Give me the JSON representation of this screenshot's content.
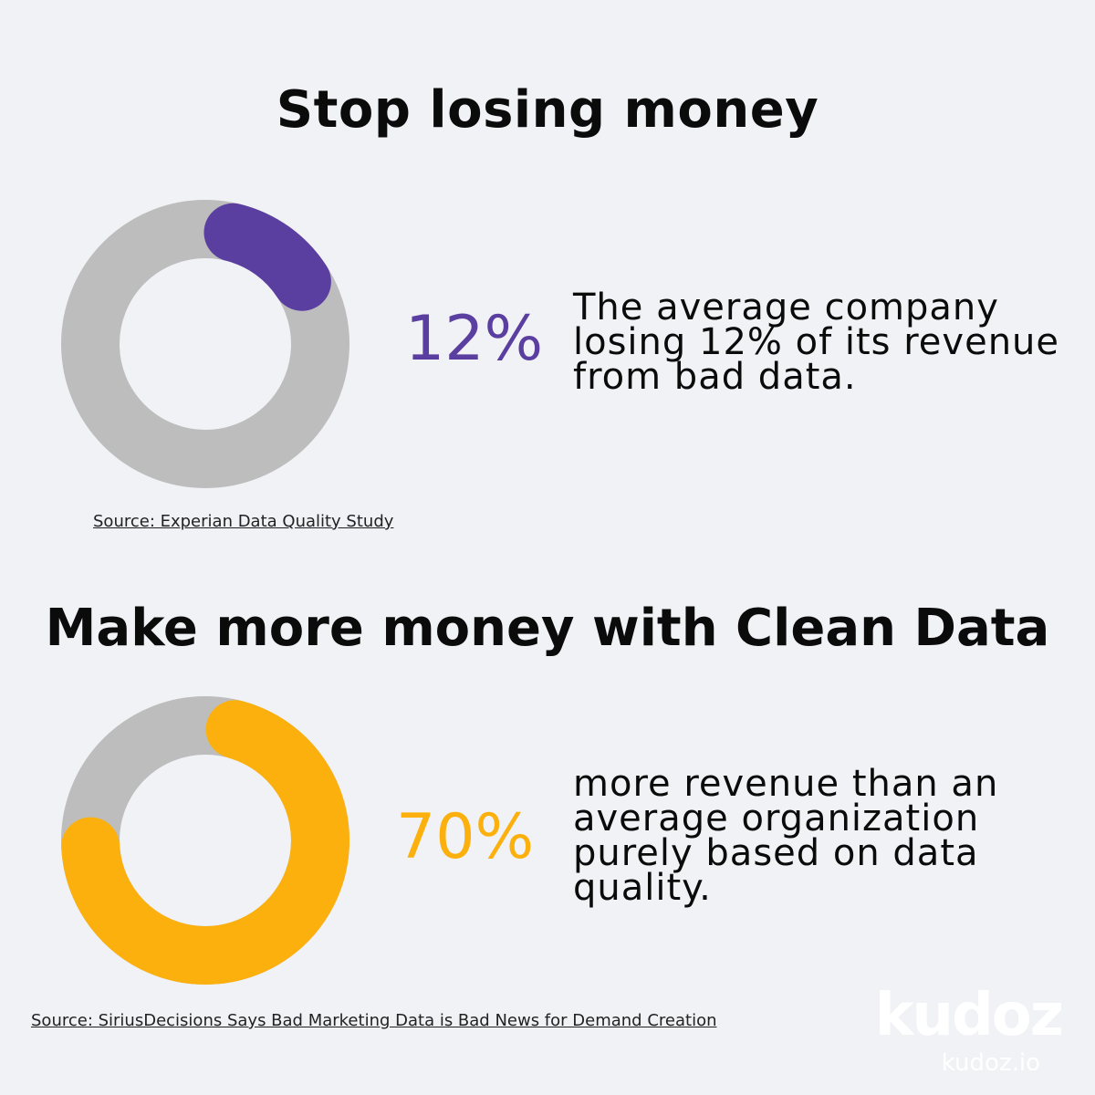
{
  "section1": {
    "title": "Stop losing money",
    "percent_label": "12%",
    "description_lines": [
      "The average company",
      "losing 12% of its revenue",
      "from bad data."
    ],
    "source": "Source: Experian Data Quality Study"
  },
  "section2": {
    "title": "Make more money with Clean Data",
    "percent_label": "70%",
    "description_lines": [
      "more revenue than an",
      "average organization",
      "purely based on data",
      "quality."
    ],
    "source": "Source: SiriusDecisions Says Bad Marketing Data is Bad News for Demand Creation"
  },
  "brand": {
    "logo_text": "kudoz",
    "url": "kudoz.io"
  },
  "chart_data": [
    {
      "type": "pie",
      "style": "donut",
      "values": [
        12,
        88
      ],
      "labels": [
        "12%",
        ""
      ],
      "colors": [
        "#5b3fa0",
        "#bdbdbd"
      ]
    },
    {
      "type": "pie",
      "style": "donut",
      "values": [
        70,
        30
      ],
      "labels": [
        "70%",
        ""
      ],
      "colors": [
        "#fbb00e",
        "#bdbdbd"
      ]
    }
  ]
}
